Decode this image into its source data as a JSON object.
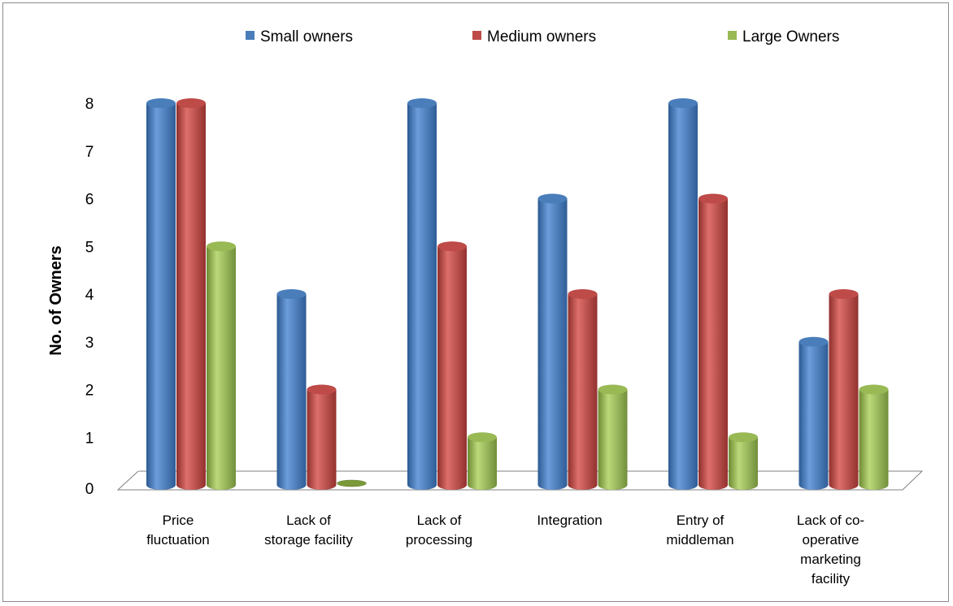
{
  "chart_data": {
    "type": "bar",
    "title": "",
    "xlabel": "",
    "ylabel": "No. of Owners",
    "ylim": [
      0,
      8
    ],
    "yticks": [
      0,
      1,
      2,
      3,
      4,
      5,
      6,
      7,
      8
    ],
    "categories": [
      [
        "Price",
        "fluctuation"
      ],
      [
        "Lack of",
        "storage facility"
      ],
      [
        "Lack of",
        "processing"
      ],
      [
        "Integration"
      ],
      [
        "Entry of",
        "middleman"
      ],
      [
        "Lack of co-",
        "operative",
        "marketing",
        "facility"
      ]
    ],
    "series": [
      {
        "name": "Small owners",
        "color": "#4a7ebb",
        "values": [
          8,
          4,
          8,
          6,
          8,
          3
        ]
      },
      {
        "name": "Medium owners",
        "color": "#be4b48",
        "values": [
          8,
          2,
          5,
          4,
          6,
          4
        ]
      },
      {
        "name": "Large Owners",
        "color": "#98b954",
        "values": [
          5,
          0,
          1,
          2,
          1,
          2
        ]
      }
    ],
    "legend_position": "top",
    "grid": false,
    "style": "3d-cylinder"
  }
}
